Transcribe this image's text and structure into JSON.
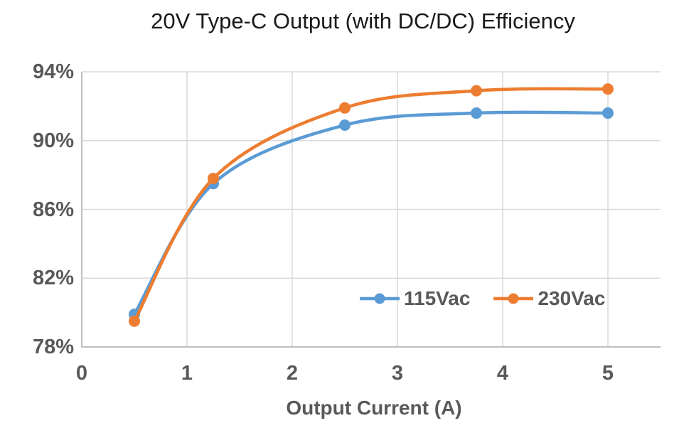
{
  "chart_data": {
    "type": "line",
    "title": "20V Type-C Output (with DC/DC) Efficiency",
    "xlabel": "Output Current (A)",
    "ylabel": "",
    "x": [
      0.5,
      1.25,
      2.5,
      3.75,
      5
    ],
    "series": [
      {
        "name": "115Vac",
        "color": "#5B9BD5",
        "values": [
          79.9,
          87.5,
          90.9,
          91.6,
          91.6
        ]
      },
      {
        "name": "230Vac",
        "color": "#ED7D31",
        "values": [
          79.5,
          87.8,
          91.9,
          92.9,
          93.0
        ]
      }
    ],
    "xlim": [
      0,
      5.5
    ],
    "ylim": [
      78,
      94
    ],
    "x_ticks": [
      "0",
      "1",
      "2",
      "3",
      "4",
      "5"
    ],
    "x_tick_values": [
      0,
      1,
      2,
      3,
      4,
      5
    ],
    "y_ticks": [
      "94%",
      "90%",
      "86%",
      "82%",
      "78%"
    ],
    "y_tick_values": [
      94,
      90,
      86,
      82,
      78
    ],
    "grid": true,
    "smooth": true,
    "legend_position": "inside-bottom-right"
  },
  "colors": {
    "background": "#FFFFFF",
    "title_text": "#1a1a1a",
    "tick_text": "#595959",
    "gridline": "#D9D9D9",
    "axis_line": "#BFBFBF",
    "series_blue": "#5B9BD5",
    "series_orange": "#ED7D31"
  }
}
